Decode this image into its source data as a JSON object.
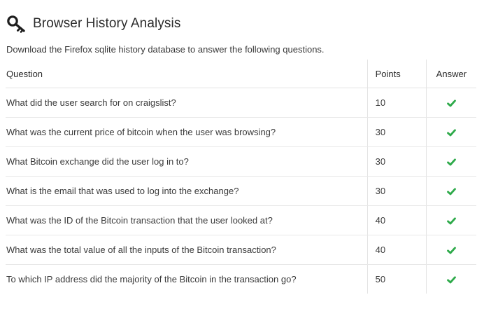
{
  "header": {
    "title": "Browser History Analysis",
    "icon": "key-icon"
  },
  "description": "Download the Firefox sqlite history database to answer the following questions.",
  "table": {
    "columns": {
      "question": "Question",
      "points": "Points",
      "answer": "Answer"
    },
    "rows": [
      {
        "question": "What did the user search for on craigslist?",
        "points": "10",
        "answered": true
      },
      {
        "question": "What was the current price of bitcoin when the user was browsing?",
        "points": "30",
        "answered": true
      },
      {
        "question": "What Bitcoin exchange did the user log in to?",
        "points": "30",
        "answered": true
      },
      {
        "question": "What is the email that was used to log into the exchange?",
        "points": "30",
        "answered": true
      },
      {
        "question": "What was the ID of the Bitcoin transaction that the user looked at?",
        "points": "40",
        "answered": true
      },
      {
        "question": "What was the total value of all the inputs of the Bitcoin transaction?",
        "points": "40",
        "answered": true
      },
      {
        "question": "To which IP address did the majority of the Bitcoin in the transaction go?",
        "points": "50",
        "answered": true
      }
    ]
  },
  "colors": {
    "check": "#2eaa4a",
    "text": "#333333",
    "border": "#e3e3e3"
  }
}
